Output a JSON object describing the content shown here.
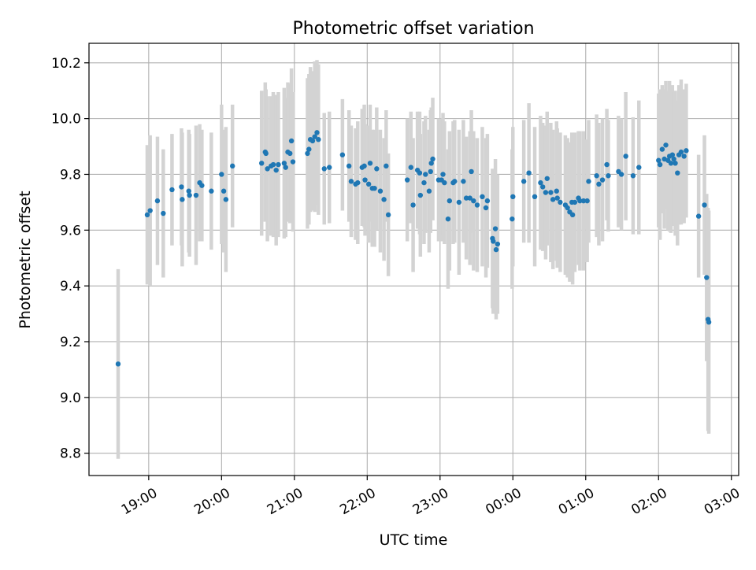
{
  "chart_data": {
    "type": "scatter",
    "title": "Photometric offset variation",
    "xlabel": "UTC time",
    "ylabel": "Photometric offset",
    "x_unit": "hours after 19:00 UTC",
    "xlim": [
      -0.82,
      8.1
    ],
    "ylim": [
      8.72,
      10.27
    ],
    "xticks": [
      {
        "label": "19:00",
        "value": 0
      },
      {
        "label": "20:00",
        "value": 1
      },
      {
        "label": "21:00",
        "value": 2
      },
      {
        "label": "22:00",
        "value": 3
      },
      {
        "label": "23:00",
        "value": 4
      },
      {
        "label": "00:00",
        "value": 5
      },
      {
        "label": "01:00",
        "value": 6
      },
      {
        "label": "02:00",
        "value": 7
      },
      {
        "label": "03:00",
        "value": 8
      }
    ],
    "yticks": [
      {
        "label": "8.8",
        "value": 8.8
      },
      {
        "label": "9.0",
        "value": 9.0
      },
      {
        "label": "9.2",
        "value": 9.2
      },
      {
        "label": "9.4",
        "value": 9.4
      },
      {
        "label": "9.6",
        "value": 9.6
      },
      {
        "label": "9.8",
        "value": 9.8
      },
      {
        "label": "10.0",
        "value": 10.0
      },
      {
        "label": "10.2",
        "value": 10.2
      }
    ],
    "grid": true,
    "marker_color": "#1f77b4",
    "errorbar_color": "#d3d3d3",
    "points": [
      [
        -0.42,
        9.12,
        0.34
      ],
      [
        -0.02,
        9.655,
        0.25
      ],
      [
        0.02,
        9.67,
        0.27
      ],
      [
        0.12,
        9.705,
        0.23
      ],
      [
        0.2,
        9.66,
        0.23
      ],
      [
        0.32,
        9.745,
        0.2
      ],
      [
        0.45,
        9.755,
        0.21
      ],
      [
        0.46,
        9.71,
        0.24
      ],
      [
        0.55,
        9.74,
        0.22
      ],
      [
        0.56,
        9.725,
        0.22
      ],
      [
        0.65,
        9.725,
        0.25
      ],
      [
        0.7,
        9.77,
        0.21
      ],
      [
        0.73,
        9.76,
        0.2
      ],
      [
        0.86,
        9.74,
        0.21
      ],
      [
        1.0,
        9.8,
        0.25
      ],
      [
        1.03,
        9.74,
        0.22
      ],
      [
        1.06,
        9.71,
        0.26
      ],
      [
        1.15,
        9.83,
        0.22
      ],
      [
        1.55,
        9.84,
        0.26
      ],
      [
        1.6,
        9.88,
        0.25
      ],
      [
        1.61,
        9.875,
        0.23
      ],
      [
        1.63,
        9.82,
        0.26
      ],
      [
        1.68,
        9.83,
        0.25
      ],
      [
        1.71,
        9.835,
        0.26
      ],
      [
        1.75,
        9.815,
        0.27
      ],
      [
        1.78,
        9.835,
        0.26
      ],
      [
        1.86,
        9.84,
        0.27
      ],
      [
        1.88,
        9.825,
        0.25
      ],
      [
        1.91,
        9.88,
        0.25
      ],
      [
        1.94,
        9.875,
        0.25
      ],
      [
        1.96,
        9.92,
        0.26
      ],
      [
        1.98,
        9.845,
        0.25
      ],
      [
        2.18,
        9.875,
        0.27
      ],
      [
        2.2,
        9.89,
        0.27
      ],
      [
        2.22,
        9.925,
        0.26
      ],
      [
        2.25,
        9.92,
        0.25
      ],
      [
        2.28,
        9.935,
        0.27
      ],
      [
        2.31,
        9.95,
        0.26
      ],
      [
        2.33,
        9.925,
        0.27
      ],
      [
        2.41,
        9.82,
        0.2
      ],
      [
        2.48,
        9.825,
        0.2
      ],
      [
        2.66,
        9.87,
        0.2
      ],
      [
        2.75,
        9.83,
        0.2
      ],
      [
        2.78,
        9.775,
        0.2
      ],
      [
        2.84,
        9.765,
        0.2
      ],
      [
        2.87,
        9.77,
        0.22
      ],
      [
        2.93,
        9.825,
        0.21
      ],
      [
        2.96,
        9.83,
        0.22
      ],
      [
        2.97,
        9.78,
        0.2
      ],
      [
        3.02,
        9.765,
        0.21
      ],
      [
        3.04,
        9.84,
        0.21
      ],
      [
        3.07,
        9.75,
        0.21
      ],
      [
        3.1,
        9.75,
        0.21
      ],
      [
        3.13,
        9.82,
        0.22
      ],
      [
        3.18,
        9.74,
        0.22
      ],
      [
        3.23,
        9.71,
        0.22
      ],
      [
        3.26,
        9.83,
        0.2
      ],
      [
        3.29,
        9.655,
        0.22
      ],
      [
        3.55,
        9.78,
        0.22
      ],
      [
        3.6,
        9.825,
        0.2
      ],
      [
        3.63,
        9.69,
        0.24
      ],
      [
        3.69,
        9.815,
        0.21
      ],
      [
        3.72,
        9.805,
        0.22
      ],
      [
        3.73,
        9.725,
        0.22
      ],
      [
        3.78,
        9.77,
        0.22
      ],
      [
        3.8,
        9.8,
        0.21
      ],
      [
        3.85,
        9.74,
        0.22
      ],
      [
        3.87,
        9.81,
        0.22
      ],
      [
        3.88,
        9.84,
        0.2
      ],
      [
        3.9,
        9.855,
        0.22
      ],
      [
        3.98,
        9.78,
        0.22
      ],
      [
        4.02,
        9.78,
        0.22
      ],
      [
        4.04,
        9.8,
        0.22
      ],
      [
        4.06,
        9.77,
        0.22
      ],
      [
        4.11,
        9.64,
        0.25
      ],
      [
        4.13,
        9.705,
        0.25
      ],
      [
        4.18,
        9.77,
        0.22
      ],
      [
        4.2,
        9.775,
        0.22
      ],
      [
        4.26,
        9.7,
        0.26
      ],
      [
        4.32,
        9.775,
        0.22
      ],
      [
        4.36,
        9.715,
        0.22
      ],
      [
        4.41,
        9.715,
        0.24
      ],
      [
        4.43,
        9.81,
        0.22
      ],
      [
        4.46,
        9.705,
        0.25
      ],
      [
        4.51,
        9.69,
        0.24
      ],
      [
        4.58,
        9.72,
        0.25
      ],
      [
        4.63,
        9.68,
        0.25
      ],
      [
        4.65,
        9.705,
        0.24
      ],
      [
        4.72,
        9.57,
        0.25
      ],
      [
        4.73,
        9.56,
        0.26
      ],
      [
        4.76,
        9.605,
        0.25
      ],
      [
        4.77,
        9.53,
        0.25
      ],
      [
        4.79,
        9.55,
        0.25
      ],
      [
        4.99,
        9.64,
        0.25
      ],
      [
        5.0,
        9.72,
        0.25
      ],
      [
        5.15,
        9.775,
        0.22
      ],
      [
        5.22,
        9.805,
        0.25
      ],
      [
        5.3,
        9.72,
        0.25
      ],
      [
        5.38,
        9.77,
        0.24
      ],
      [
        5.41,
        9.755,
        0.23
      ],
      [
        5.45,
        9.735,
        0.24
      ],
      [
        5.47,
        9.785,
        0.24
      ],
      [
        5.52,
        9.735,
        0.25
      ],
      [
        5.55,
        9.71,
        0.25
      ],
      [
        5.6,
        9.74,
        0.25
      ],
      [
        5.61,
        9.715,
        0.25
      ],
      [
        5.65,
        9.7,
        0.25
      ],
      [
        5.72,
        9.69,
        0.25
      ],
      [
        5.75,
        9.68,
        0.25
      ],
      [
        5.78,
        9.665,
        0.25
      ],
      [
        5.81,
        9.7,
        0.25
      ],
      [
        5.82,
        9.655,
        0.25
      ],
      [
        5.85,
        9.7,
        0.25
      ],
      [
        5.9,
        9.715,
        0.24
      ],
      [
        5.92,
        9.705,
        0.25
      ],
      [
        5.97,
        9.705,
        0.25
      ],
      [
        6.02,
        9.705,
        0.22
      ],
      [
        6.04,
        9.775,
        0.22
      ],
      [
        6.15,
        9.795,
        0.22
      ],
      [
        6.18,
        9.765,
        0.22
      ],
      [
        6.23,
        9.78,
        0.22
      ],
      [
        6.29,
        9.835,
        0.2
      ],
      [
        6.31,
        9.795,
        0.2
      ],
      [
        6.45,
        9.81,
        0.2
      ],
      [
        6.49,
        9.8,
        0.2
      ],
      [
        6.55,
        9.865,
        0.23
      ],
      [
        6.65,
        9.795,
        0.21
      ],
      [
        6.73,
        9.825,
        0.24
      ],
      [
        7.0,
        9.85,
        0.24
      ],
      [
        7.02,
        9.835,
        0.27
      ],
      [
        7.05,
        9.89,
        0.23
      ],
      [
        7.08,
        9.855,
        0.25
      ],
      [
        7.1,
        9.905,
        0.23
      ],
      [
        7.13,
        9.85,
        0.25
      ],
      [
        7.15,
        9.865,
        0.27
      ],
      [
        7.17,
        9.84,
        0.25
      ],
      [
        7.19,
        9.87,
        0.25
      ],
      [
        7.21,
        9.855,
        0.24
      ],
      [
        7.23,
        9.84,
        0.26
      ],
      [
        7.26,
        9.805,
        0.26
      ],
      [
        7.28,
        9.87,
        0.25
      ],
      [
        7.31,
        9.88,
        0.26
      ],
      [
        7.35,
        9.865,
        0.24
      ],
      [
        7.38,
        9.885,
        0.24
      ],
      [
        7.55,
        9.65,
        0.22
      ],
      [
        7.63,
        9.69,
        0.25
      ],
      [
        7.66,
        9.43,
        0.3
      ],
      [
        7.68,
        9.28,
        0.4
      ],
      [
        7.69,
        9.27,
        0.4
      ]
    ]
  }
}
